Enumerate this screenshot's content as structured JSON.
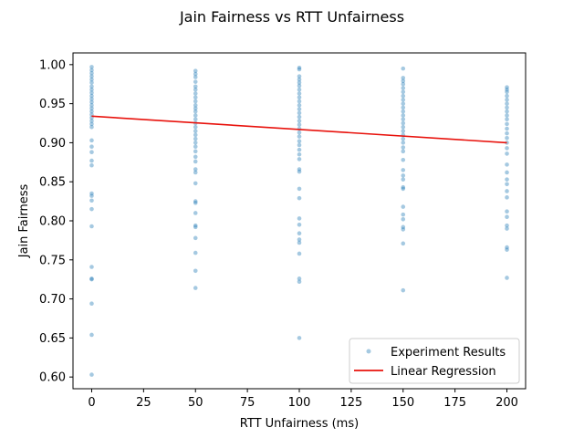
{
  "chart_data": {
    "type": "scatter",
    "title": "Jain Fairness vs RTT Unfairness",
    "xlabel": "RTT Unfairness (ms)",
    "ylabel": "Jain Fairness",
    "xlim": [
      -9,
      209
    ],
    "ylim": [
      0.585,
      1.015
    ],
    "xticks": [
      0,
      25,
      50,
      75,
      100,
      125,
      150,
      175,
      200
    ],
    "yticks": [
      0.6,
      0.65,
      0.7,
      0.75,
      0.8,
      0.85,
      0.9,
      0.95,
      1.0
    ],
    "xtick_labels": [
      "0",
      "25",
      "50",
      "75",
      "100",
      "125",
      "150",
      "175",
      "200"
    ],
    "ytick_labels": [
      "0.60",
      "0.65",
      "0.70",
      "0.75",
      "0.80",
      "0.85",
      "0.90",
      "0.95",
      "1.00"
    ],
    "legend_position": "lower-right",
    "grid": false,
    "series": [
      {
        "name": "Experiment Results",
        "kind": "scatter",
        "color": "#1f77b4",
        "points": [
          [
            0,
            0.997
          ],
          [
            0,
            0.993
          ],
          [
            0,
            0.989
          ],
          [
            0,
            0.985
          ],
          [
            0,
            0.981
          ],
          [
            0,
            0.977
          ],
          [
            0,
            0.972
          ],
          [
            0,
            0.968
          ],
          [
            0,
            0.964
          ],
          [
            0,
            0.96
          ],
          [
            0,
            0.956
          ],
          [
            0,
            0.952
          ],
          [
            0,
            0.948
          ],
          [
            0,
            0.944
          ],
          [
            0,
            0.94
          ],
          [
            0,
            0.936
          ],
          [
            0,
            0.932
          ],
          [
            0,
            0.928
          ],
          [
            0,
            0.924
          ],
          [
            0,
            0.92
          ],
          [
            0,
            0.903
          ],
          [
            0,
            0.895
          ],
          [
            0,
            0.888
          ],
          [
            0,
            0.877
          ],
          [
            0,
            0.871
          ],
          [
            0,
            0.835
          ],
          [
            0,
            0.832
          ],
          [
            0,
            0.826
          ],
          [
            0,
            0.815
          ],
          [
            0,
            0.793
          ],
          [
            0,
            0.741
          ],
          [
            0,
            0.726
          ],
          [
            0,
            0.725
          ],
          [
            0,
            0.694
          ],
          [
            0,
            0.654
          ],
          [
            0,
            0.603
          ],
          [
            50,
            0.992
          ],
          [
            50,
            0.988
          ],
          [
            50,
            0.984
          ],
          [
            50,
            0.978
          ],
          [
            50,
            0.972
          ],
          [
            50,
            0.968
          ],
          [
            50,
            0.963
          ],
          [
            50,
            0.958
          ],
          [
            50,
            0.953
          ],
          [
            50,
            0.948
          ],
          [
            50,
            0.944
          ],
          [
            50,
            0.94
          ],
          [
            50,
            0.935
          ],
          [
            50,
            0.93
          ],
          [
            50,
            0.925
          ],
          [
            50,
            0.92
          ],
          [
            50,
            0.915
          ],
          [
            50,
            0.91
          ],
          [
            50,
            0.905
          ],
          [
            50,
            0.9
          ],
          [
            50,
            0.895
          ],
          [
            50,
            0.889
          ],
          [
            50,
            0.882
          ],
          [
            50,
            0.876
          ],
          [
            50,
            0.866
          ],
          [
            50,
            0.862
          ],
          [
            50,
            0.848
          ],
          [
            50,
            0.825
          ],
          [
            50,
            0.823
          ],
          [
            50,
            0.81
          ],
          [
            50,
            0.794
          ],
          [
            50,
            0.792
          ],
          [
            50,
            0.778
          ],
          [
            50,
            0.759
          ],
          [
            50,
            0.736
          ],
          [
            50,
            0.714
          ],
          [
            100,
            0.996
          ],
          [
            100,
            0.994
          ],
          [
            100,
            0.985
          ],
          [
            100,
            0.981
          ],
          [
            100,
            0.977
          ],
          [
            100,
            0.973
          ],
          [
            100,
            0.968
          ],
          [
            100,
            0.963
          ],
          [
            100,
            0.958
          ],
          [
            100,
            0.953
          ],
          [
            100,
            0.948
          ],
          [
            100,
            0.943
          ],
          [
            100,
            0.938
          ],
          [
            100,
            0.933
          ],
          [
            100,
            0.928
          ],
          [
            100,
            0.923
          ],
          [
            100,
            0.918
          ],
          [
            100,
            0.913
          ],
          [
            100,
            0.908
          ],
          [
            100,
            0.902
          ],
          [
            100,
            0.897
          ],
          [
            100,
            0.891
          ],
          [
            100,
            0.885
          ],
          [
            100,
            0.879
          ],
          [
            100,
            0.866
          ],
          [
            100,
            0.863
          ],
          [
            100,
            0.841
          ],
          [
            100,
            0.829
          ],
          [
            100,
            0.803
          ],
          [
            100,
            0.795
          ],
          [
            100,
            0.784
          ],
          [
            100,
            0.776
          ],
          [
            100,
            0.772
          ],
          [
            100,
            0.758
          ],
          [
            100,
            0.726
          ],
          [
            100,
            0.722
          ],
          [
            100,
            0.65
          ],
          [
            150,
            0.995
          ],
          [
            150,
            0.983
          ],
          [
            150,
            0.979
          ],
          [
            150,
            0.975
          ],
          [
            150,
            0.97
          ],
          [
            150,
            0.965
          ],
          [
            150,
            0.96
          ],
          [
            150,
            0.955
          ],
          [
            150,
            0.95
          ],
          [
            150,
            0.945
          ],
          [
            150,
            0.94
          ],
          [
            150,
            0.935
          ],
          [
            150,
            0.93
          ],
          [
            150,
            0.925
          ],
          [
            150,
            0.92
          ],
          [
            150,
            0.915
          ],
          [
            150,
            0.91
          ],
          [
            150,
            0.905
          ],
          [
            150,
            0.9
          ],
          [
            150,
            0.894
          ],
          [
            150,
            0.889
          ],
          [
            150,
            0.878
          ],
          [
            150,
            0.865
          ],
          [
            150,
            0.858
          ],
          [
            150,
            0.853
          ],
          [
            150,
            0.843
          ],
          [
            150,
            0.841
          ],
          [
            150,
            0.818
          ],
          [
            150,
            0.808
          ],
          [
            150,
            0.802
          ],
          [
            150,
            0.792
          ],
          [
            150,
            0.789
          ],
          [
            150,
            0.771
          ],
          [
            150,
            0.711
          ],
          [
            200,
            0.971
          ],
          [
            200,
            0.968
          ],
          [
            200,
            0.965
          ],
          [
            200,
            0.96
          ],
          [
            200,
            0.955
          ],
          [
            200,
            0.95
          ],
          [
            200,
            0.945
          ],
          [
            200,
            0.94
          ],
          [
            200,
            0.935
          ],
          [
            200,
            0.93
          ],
          [
            200,
            0.924
          ],
          [
            200,
            0.918
          ],
          [
            200,
            0.912
          ],
          [
            200,
            0.906
          ],
          [
            200,
            0.9
          ],
          [
            200,
            0.893
          ],
          [
            200,
            0.886
          ],
          [
            200,
            0.872
          ],
          [
            200,
            0.862
          ],
          [
            200,
            0.853
          ],
          [
            200,
            0.847
          ],
          [
            200,
            0.838
          ],
          [
            200,
            0.83
          ],
          [
            200,
            0.812
          ],
          [
            200,
            0.805
          ],
          [
            200,
            0.794
          ],
          [
            200,
            0.79
          ],
          [
            200,
            0.766
          ],
          [
            200,
            0.763
          ],
          [
            200,
            0.727
          ]
        ]
      },
      {
        "name": "Linear Regression",
        "kind": "line",
        "color": "#e8120c",
        "points": [
          [
            0,
            0.934
          ],
          [
            200,
            0.9
          ]
        ]
      }
    ]
  }
}
